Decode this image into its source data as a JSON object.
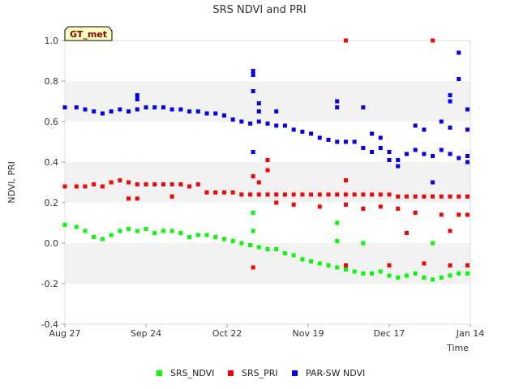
{
  "chart_data": {
    "type": "scatter",
    "title": "SRS NDVI and PRI",
    "xlabel": "Time",
    "ylabel": "NDVI, PRI",
    "badge": "GT_met",
    "x_ticks": [
      "Aug 27",
      "Sep 24",
      "Oct 22",
      "Nov 19",
      "Dec 17",
      "Jan 14"
    ],
    "y_ticks": [
      "-0.4",
      "-0.2",
      "0.0",
      "0.2",
      "0.4",
      "0.6",
      "0.8",
      "1.0"
    ],
    "ylim": [
      -0.4,
      1.0
    ],
    "grid": "alternating horizontal bands",
    "legend_position": "bottom",
    "series": [
      {
        "name": "SRS_NDVI",
        "color": "#00ff00",
        "points": [
          [
            "2023-08-27",
            0.09
          ],
          [
            "2023-08-31",
            0.08
          ],
          [
            "2023-09-03",
            0.06
          ],
          [
            "2023-09-06",
            0.03
          ],
          [
            "2023-09-09",
            0.02
          ],
          [
            "2023-09-12",
            0.04
          ],
          [
            "2023-09-15",
            0.06
          ],
          [
            "2023-09-18",
            0.07
          ],
          [
            "2023-09-21",
            0.06
          ],
          [
            "2023-09-24",
            0.07
          ],
          [
            "2023-09-27",
            0.05
          ],
          [
            "2023-09-30",
            0.06
          ],
          [
            "2023-10-03",
            0.06
          ],
          [
            "2023-10-06",
            0.05
          ],
          [
            "2023-10-09",
            0.03
          ],
          [
            "2023-10-12",
            0.04
          ],
          [
            "2023-10-15",
            0.04
          ],
          [
            "2023-10-18",
            0.03
          ],
          [
            "2023-10-21",
            0.02
          ],
          [
            "2023-10-24",
            0.01
          ],
          [
            "2023-10-27",
            0.0
          ],
          [
            "2023-10-30",
            -0.01
          ],
          [
            "2023-11-02",
            -0.02
          ],
          [
            "2023-11-05",
            -0.03
          ],
          [
            "2023-11-08",
            -0.03
          ],
          [
            "2023-11-11",
            -0.05
          ],
          [
            "2023-11-14",
            -0.06
          ],
          [
            "2023-11-17",
            -0.08
          ],
          [
            "2023-11-20",
            -0.09
          ],
          [
            "2023-11-23",
            -0.1
          ],
          [
            "2023-11-26",
            -0.11
          ],
          [
            "2023-11-29",
            -0.12
          ],
          [
            "2023-12-02",
            -0.13
          ],
          [
            "2023-12-05",
            -0.14
          ],
          [
            "2023-12-08",
            -0.15
          ],
          [
            "2023-12-11",
            -0.15
          ],
          [
            "2023-12-14",
            -0.14
          ],
          [
            "2023-12-17",
            -0.16
          ],
          [
            "2023-12-20",
            -0.17
          ],
          [
            "2023-12-23",
            -0.16
          ],
          [
            "2023-12-26",
            -0.15
          ],
          [
            "2023-12-29",
            -0.17
          ],
          [
            "2024-01-01",
            -0.18
          ],
          [
            "2024-01-04",
            -0.17
          ],
          [
            "2024-01-07",
            -0.16
          ],
          [
            "2024-01-10",
            -0.15
          ],
          [
            "2024-01-13",
            -0.15
          ],
          [
            "2023-10-31",
            0.15
          ],
          [
            "2023-10-31",
            0.06
          ],
          [
            "2023-11-29",
            0.1
          ],
          [
            "2023-11-29",
            0.01
          ],
          [
            "2023-12-08",
            0.0
          ],
          [
            "2024-01-01",
            0.0
          ]
        ]
      },
      {
        "name": "SRS_PRI",
        "color": "#ff0000",
        "points": [
          [
            "2023-08-27",
            0.28
          ],
          [
            "2023-08-31",
            0.28
          ],
          [
            "2023-09-03",
            0.28
          ],
          [
            "2023-09-06",
            0.29
          ],
          [
            "2023-09-09",
            0.28
          ],
          [
            "2023-09-12",
            0.3
          ],
          [
            "2023-09-15",
            0.31
          ],
          [
            "2023-09-18",
            0.3
          ],
          [
            "2023-09-21",
            0.29
          ],
          [
            "2023-09-24",
            0.29
          ],
          [
            "2023-09-27",
            0.29
          ],
          [
            "2023-09-30",
            0.29
          ],
          [
            "2023-10-03",
            0.29
          ],
          [
            "2023-10-06",
            0.29
          ],
          [
            "2023-10-09",
            0.28
          ],
          [
            "2023-10-12",
            0.29
          ],
          [
            "2023-10-15",
            0.25
          ],
          [
            "2023-10-18",
            0.25
          ],
          [
            "2023-10-21",
            0.25
          ],
          [
            "2023-10-24",
            0.25
          ],
          [
            "2023-10-27",
            0.24
          ],
          [
            "2023-10-30",
            0.24
          ],
          [
            "2023-11-02",
            0.24
          ],
          [
            "2023-11-05",
            0.24
          ],
          [
            "2023-11-08",
            0.24
          ],
          [
            "2023-11-11",
            0.24
          ],
          [
            "2023-11-14",
            0.24
          ],
          [
            "2023-11-17",
            0.24
          ],
          [
            "2023-11-20",
            0.24
          ],
          [
            "2023-11-23",
            0.24
          ],
          [
            "2023-11-26",
            0.24
          ],
          [
            "2023-11-29",
            0.24
          ],
          [
            "2023-12-02",
            0.24
          ],
          [
            "2023-12-05",
            0.24
          ],
          [
            "2023-12-08",
            0.24
          ],
          [
            "2023-12-11",
            0.24
          ],
          [
            "2023-12-14",
            0.24
          ],
          [
            "2023-12-17",
            0.24
          ],
          [
            "2023-12-20",
            0.23
          ],
          [
            "2023-12-23",
            0.23
          ],
          [
            "2023-12-26",
            0.23
          ],
          [
            "2023-12-29",
            0.23
          ],
          [
            "2024-01-01",
            0.23
          ],
          [
            "2024-01-04",
            0.23
          ],
          [
            "2024-01-07",
            0.23
          ],
          [
            "2024-01-10",
            0.23
          ],
          [
            "2024-01-13",
            0.23
          ],
          [
            "2023-09-18",
            0.22
          ],
          [
            "2023-09-21",
            0.22
          ],
          [
            "2023-10-03",
            0.23
          ],
          [
            "2023-11-08",
            0.2
          ],
          [
            "2023-11-14",
            0.19
          ],
          [
            "2023-11-23",
            0.18
          ],
          [
            "2023-12-02",
            0.19
          ],
          [
            "2023-12-08",
            0.17
          ],
          [
            "2023-12-14",
            0.18
          ],
          [
            "2023-12-20",
            0.17
          ],
          [
            "2023-12-26",
            0.15
          ],
          [
            "2024-01-04",
            0.14
          ],
          [
            "2024-01-10",
            0.14
          ],
          [
            "2024-01-13",
            0.14
          ],
          [
            "2023-11-05",
            0.41
          ],
          [
            "2023-11-05",
            0.36
          ],
          [
            "2023-11-02",
            0.3
          ],
          [
            "2023-10-31",
            0.33
          ],
          [
            "2023-12-02",
            0.31
          ],
          [
            "2023-12-23",
            0.05
          ],
          [
            "2024-01-07",
            0.06
          ],
          [
            "2023-10-31",
            -0.12
          ],
          [
            "2023-12-02",
            -0.11
          ],
          [
            "2023-12-17",
            -0.11
          ],
          [
            "2023-12-29",
            -0.1
          ],
          [
            "2024-01-07",
            -0.11
          ],
          [
            "2024-01-13",
            -0.11
          ],
          [
            "2023-12-02",
            1.0
          ],
          [
            "2024-01-01",
            1.0
          ]
        ]
      },
      {
        "name": "PAR-SW NDVI",
        "color": "#0000ff",
        "points": [
          [
            "2023-08-27",
            0.67
          ],
          [
            "2023-08-31",
            0.67
          ],
          [
            "2023-09-03",
            0.66
          ],
          [
            "2023-09-06",
            0.65
          ],
          [
            "2023-09-09",
            0.64
          ],
          [
            "2023-09-12",
            0.65
          ],
          [
            "2023-09-15",
            0.66
          ],
          [
            "2023-09-18",
            0.65
          ],
          [
            "2023-09-21",
            0.66
          ],
          [
            "2023-09-24",
            0.67
          ],
          [
            "2023-09-27",
            0.67
          ],
          [
            "2023-09-30",
            0.67
          ],
          [
            "2023-10-03",
            0.66
          ],
          [
            "2023-10-06",
            0.66
          ],
          [
            "2023-10-09",
            0.65
          ],
          [
            "2023-10-12",
            0.65
          ],
          [
            "2023-10-15",
            0.64
          ],
          [
            "2023-10-18",
            0.64
          ],
          [
            "2023-10-21",
            0.63
          ],
          [
            "2023-10-24",
            0.61
          ],
          [
            "2023-10-27",
            0.6
          ],
          [
            "2023-10-30",
            0.59
          ],
          [
            "2023-11-02",
            0.6
          ],
          [
            "2023-11-05",
            0.59
          ],
          [
            "2023-11-08",
            0.58
          ],
          [
            "2023-11-11",
            0.58
          ],
          [
            "2023-11-14",
            0.56
          ],
          [
            "2023-11-17",
            0.55
          ],
          [
            "2023-11-20",
            0.54
          ],
          [
            "2023-11-23",
            0.52
          ],
          [
            "2023-11-26",
            0.51
          ],
          [
            "2023-11-29",
            0.5
          ],
          [
            "2023-12-02",
            0.5
          ],
          [
            "2023-12-05",
            0.5
          ],
          [
            "2023-12-08",
            0.47
          ],
          [
            "2023-12-11",
            0.45
          ],
          [
            "2023-12-14",
            0.47
          ],
          [
            "2023-12-17",
            0.45
          ],
          [
            "2023-12-20",
            0.41
          ],
          [
            "2023-12-23",
            0.44
          ],
          [
            "2023-12-26",
            0.46
          ],
          [
            "2023-12-29",
            0.44
          ],
          [
            "2024-01-01",
            0.43
          ],
          [
            "2024-01-04",
            0.46
          ],
          [
            "2024-01-07",
            0.44
          ],
          [
            "2024-01-10",
            0.42
          ],
          [
            "2024-01-13",
            0.43
          ],
          [
            "2023-09-21",
            0.73
          ],
          [
            "2023-09-21",
            0.71
          ],
          [
            "2023-10-31",
            0.85
          ],
          [
            "2023-10-31",
            0.83
          ],
          [
            "2023-10-31",
            0.75
          ],
          [
            "2023-11-02",
            0.69
          ],
          [
            "2023-11-02",
            0.65
          ],
          [
            "2023-10-31",
            0.45
          ],
          [
            "2023-11-08",
            0.65
          ],
          [
            "2023-11-29",
            0.7
          ],
          [
            "2023-11-29",
            0.67
          ],
          [
            "2023-12-08",
            0.67
          ],
          [
            "2023-12-11",
            0.54
          ],
          [
            "2023-12-14",
            0.52
          ],
          [
            "2023-12-20",
            0.38
          ],
          [
            "2023-12-26",
            0.58
          ],
          [
            "2023-12-29",
            0.56
          ],
          [
            "2024-01-04",
            0.6
          ],
          [
            "2024-01-07",
            0.73
          ],
          [
            "2024-01-07",
            0.7
          ],
          [
            "2024-01-10",
            0.94
          ],
          [
            "2024-01-10",
            0.81
          ],
          [
            "2024-01-13",
            0.66
          ],
          [
            "2024-01-13",
            0.56
          ],
          [
            "2024-01-13",
            0.4
          ],
          [
            "2024-01-01",
            0.3
          ],
          [
            "2023-12-17",
            0.41
          ],
          [
            "2024-01-07",
            0.57
          ]
        ]
      }
    ]
  }
}
